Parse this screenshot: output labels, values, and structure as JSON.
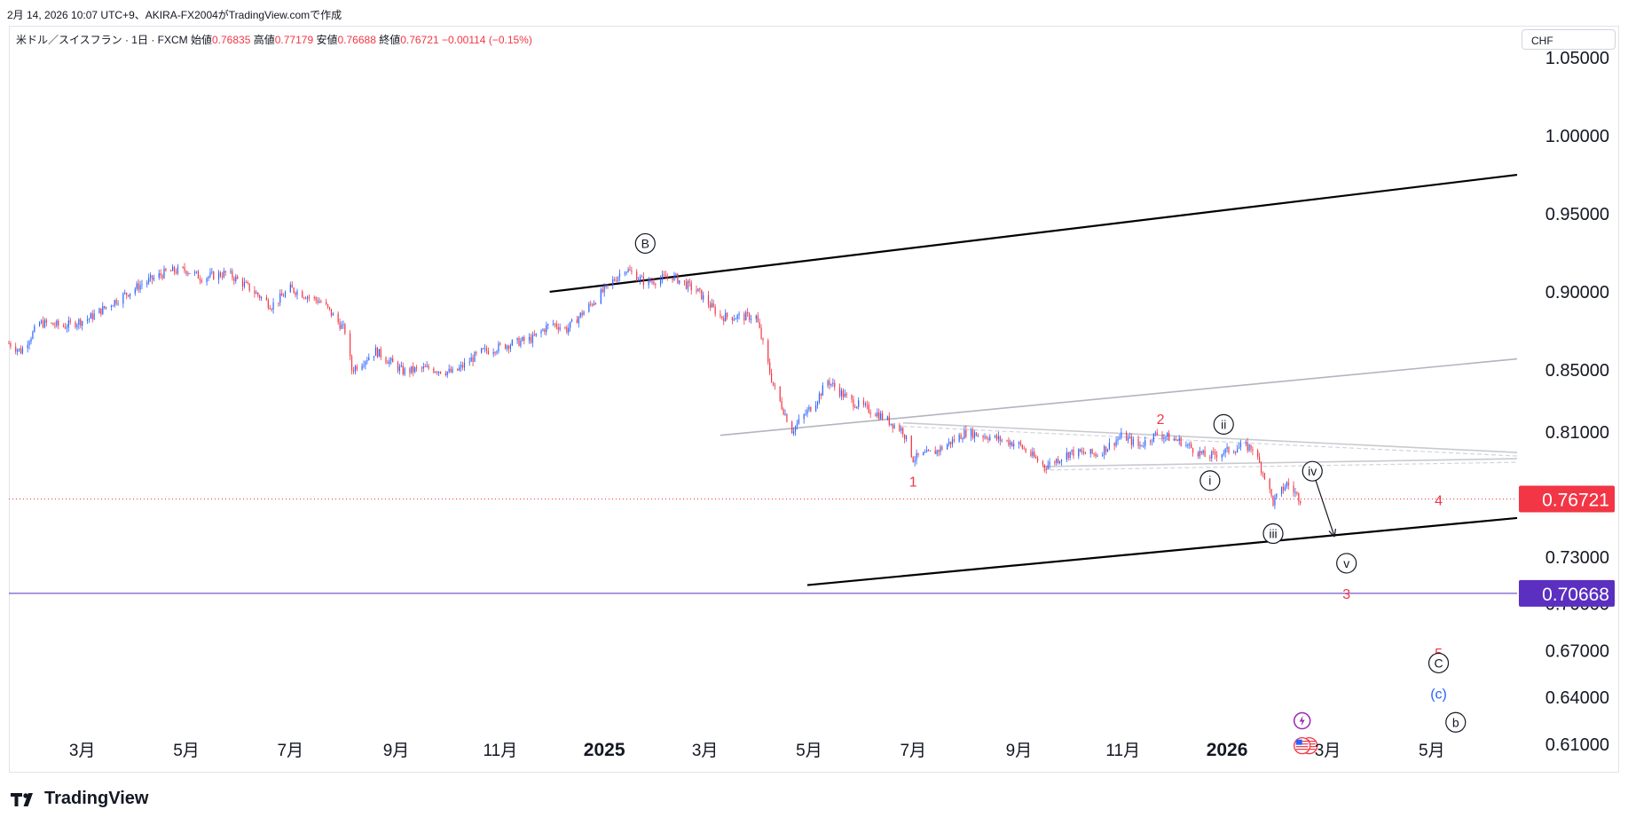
{
  "header": {
    "created_line": "2月 14, 2026 10:07 UTC+9、AKIRA-FX2004がTradingView.comで作成"
  },
  "legend": {
    "symbol": "米ドル／スイスフラン · 1日 · FXCM",
    "open_label": "始値",
    "open": "0.76835",
    "high_label": "高値",
    "high": "0.77179",
    "low_label": "安値",
    "low": "0.76688",
    "close_label": "終値",
    "close": "0.76721",
    "change": "−0.00114 (−0.15%)"
  },
  "currency_button": "CHF",
  "brand": {
    "name": "TradingView",
    "logo": "tradingview-logo"
  },
  "colors": {
    "up": "#2962ff",
    "down": "#f23645",
    "price_tag": "#f23645",
    "level_tag": "#5b2fc0",
    "wave_red": "#f23645",
    "wave_blue": "#2962ff"
  },
  "chart_data": {
    "type": "candlestick",
    "instrument": "USD/CHF daily",
    "y_ticks": [
      "1.05000",
      "1.00000",
      "0.95000",
      "0.90000",
      "0.85000",
      "0.81000",
      "0.73000",
      "0.70000",
      "0.67000",
      "0.64000",
      "0.61000"
    ],
    "x_ticks": [
      "3月",
      "5月",
      "7月",
      "9月",
      "11月",
      "2025",
      "3月",
      "5月",
      "7月",
      "9月",
      "11月",
      "2026",
      "3月",
      "5月"
    ],
    "x_tick_dates": [
      "2024-03-01",
      "2024-05-01",
      "2024-07-01",
      "2024-09-01",
      "2024-11-01",
      "2025-01-01",
      "2025-03-01",
      "2025-05-01",
      "2025-07-01",
      "2025-09-01",
      "2025-11-01",
      "2026-01-01",
      "2026-03-01",
      "2026-05-01"
    ],
    "x_range": [
      "2024-01-18",
      "2026-06-20"
    ],
    "ylim": [
      0.598,
      1.07
    ],
    "price_line": {
      "value": 0.76721,
      "label": "0.76721"
    },
    "level_line": {
      "value": 0.70668,
      "label": "0.70668"
    },
    "price_path": [
      [
        "2024-01-18",
        0.867
      ],
      [
        "2024-01-25",
        0.862
      ],
      [
        "2024-02-05",
        0.88
      ],
      [
        "2024-02-20",
        0.878
      ],
      [
        "2024-03-05",
        0.883
      ],
      [
        "2024-03-20",
        0.894
      ],
      [
        "2024-04-05",
        0.905
      ],
      [
        "2024-04-20",
        0.913
      ],
      [
        "2024-05-01",
        0.914
      ],
      [
        "2024-05-10",
        0.909
      ],
      [
        "2024-05-25",
        0.912
      ],
      [
        "2024-06-05",
        0.904
      ],
      [
        "2024-06-20",
        0.891
      ],
      [
        "2024-07-01",
        0.902
      ],
      [
        "2024-07-20",
        0.893
      ],
      [
        "2024-08-02",
        0.875
      ],
      [
        "2024-08-06",
        0.85
      ],
      [
        "2024-08-20",
        0.862
      ],
      [
        "2024-09-05",
        0.849
      ],
      [
        "2024-09-20",
        0.851
      ],
      [
        "2024-10-05",
        0.848
      ],
      [
        "2024-10-20",
        0.861
      ],
      [
        "2024-11-05",
        0.866
      ],
      [
        "2024-11-20",
        0.87
      ],
      [
        "2024-12-01",
        0.88
      ],
      [
        "2024-12-10",
        0.876
      ],
      [
        "2024-12-25",
        0.893
      ],
      [
        "2025-01-13",
        0.915
      ],
      [
        "2025-01-25",
        0.906
      ],
      [
        "2025-02-10",
        0.91
      ],
      [
        "2025-02-25",
        0.9
      ],
      [
        "2025-03-10",
        0.884
      ],
      [
        "2025-03-31",
        0.884
      ],
      [
        "2025-04-10",
        0.84
      ],
      [
        "2025-04-21",
        0.811
      ],
      [
        "2025-05-05",
        0.83
      ],
      [
        "2025-05-12",
        0.843
      ],
      [
        "2025-05-25",
        0.83
      ],
      [
        "2025-06-10",
        0.822
      ],
      [
        "2025-06-25",
        0.811
      ],
      [
        "2025-07-01",
        0.793
      ],
      [
        "2025-07-15",
        0.798
      ],
      [
        "2025-08-01",
        0.81
      ],
      [
        "2025-08-15",
        0.807
      ],
      [
        "2025-09-01",
        0.802
      ],
      [
        "2025-09-16",
        0.788
      ],
      [
        "2025-10-01",
        0.797
      ],
      [
        "2025-10-17",
        0.796
      ],
      [
        "2025-11-01",
        0.808
      ],
      [
        "2025-11-10",
        0.801
      ],
      [
        "2025-11-21",
        0.809
      ],
      [
        "2025-12-05",
        0.804
      ],
      [
        "2025-12-20",
        0.794
      ],
      [
        "2026-01-10",
        0.801
      ],
      [
        "2026-01-16",
        0.8
      ],
      [
        "2026-01-23",
        0.782
      ],
      [
        "2026-01-28",
        0.765
      ],
      [
        "2026-02-05",
        0.777
      ],
      [
        "2026-02-13",
        0.76721
      ]
    ],
    "trendlines": [
      {
        "name": "upper-channel-line",
        "color": "#000000",
        "from": [
          "2024-11-30",
          0.9
        ],
        "to": [
          "2026-06-20",
          0.975
        ]
      },
      {
        "name": "lower-channel-line",
        "color": "#000000",
        "from": [
          "2025-04-30",
          0.712
        ],
        "to": [
          "2026-06-20",
          0.755
        ]
      },
      {
        "name": "mid-channel-line",
        "color": "#b2b5be",
        "from": [
          "2025-03-10",
          0.808
        ],
        "to": [
          "2026-06-20",
          0.857
        ]
      },
      {
        "name": "triangle-upper-line",
        "color": "#c8cad0",
        "from": [
          "2025-06-25",
          0.816
        ],
        "to": [
          "2026-06-20",
          0.797
        ]
      },
      {
        "name": "triangle-lower-line",
        "color": "#c8cad0",
        "from": [
          "2025-09-15",
          0.788
        ],
        "to": [
          "2026-06-20",
          0.793
        ]
      }
    ],
    "arrow": {
      "name": "projection-arrow",
      "from": [
        "2026-02-22",
        0.779
      ],
      "to": [
        "2026-03-05",
        0.743
      ]
    },
    "wave_labels": [
      {
        "text": "B",
        "style": "circle-black",
        "at": [
          "2025-01-25",
          0.931
        ]
      },
      {
        "text": "1",
        "style": "red",
        "at": [
          "2025-07-01",
          0.778
        ]
      },
      {
        "text": "2",
        "style": "red",
        "at": [
          "2025-11-23",
          0.818
        ]
      },
      {
        "text": "ii",
        "style": "circle-black",
        "at": [
          "2025-12-30",
          0.815
        ]
      },
      {
        "text": "i",
        "style": "circle-black",
        "at": [
          "2025-12-22",
          0.779
        ]
      },
      {
        "text": "iv",
        "style": "circle-black",
        "at": [
          "2026-02-20",
          0.785
        ]
      },
      {
        "text": "iii",
        "style": "circle-black",
        "at": [
          "2026-01-28",
          0.745
        ]
      },
      {
        "text": "v",
        "style": "circle-black",
        "at": [
          "2026-03-12",
          0.726
        ]
      },
      {
        "text": "4",
        "style": "red",
        "at": [
          "2026-05-05",
          0.766
        ]
      },
      {
        "text": "3",
        "style": "red",
        "at": [
          "2026-03-12",
          0.706
        ]
      },
      {
        "text": "5",
        "style": "red",
        "at": [
          "2026-05-05",
          0.668
        ]
      },
      {
        "text": "C",
        "style": "circle-black",
        "at": [
          "2026-05-05",
          0.662
        ]
      },
      {
        "text": "(c)",
        "style": "blue",
        "at": [
          "2026-05-05",
          0.642
        ]
      },
      {
        "text": "b",
        "style": "circle-black",
        "at": [
          "2026-05-15",
          0.624
        ]
      }
    ],
    "event_icons": [
      {
        "name": "flash-event-icon",
        "at": [
          "2026-02-14",
          0.625
        ]
      },
      {
        "name": "us-flag-event-icon",
        "at": [
          "2026-02-14",
          0.609
        ]
      }
    ]
  }
}
